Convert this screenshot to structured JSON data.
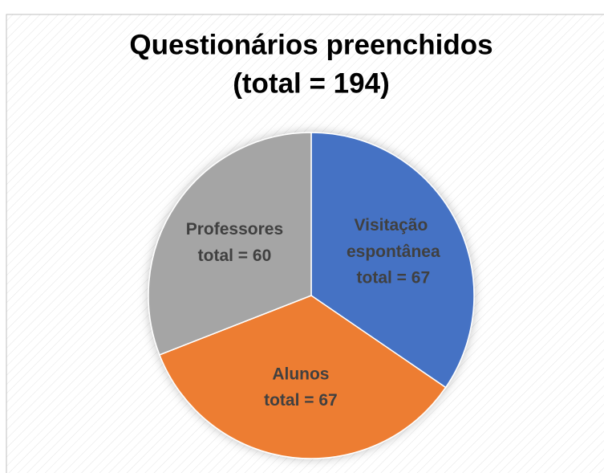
{
  "chart_data": {
    "type": "pie",
    "title": "Questionários preenchidos",
    "subtitle": "(total = 194)",
    "categories": [
      "Visitação espontânea",
      "Alunos",
      "Professores"
    ],
    "values": [
      67,
      67,
      60
    ],
    "value_labels": [
      "total = 67",
      "total = 67",
      "total = 60"
    ],
    "colors": [
      "#4472c4",
      "#ed7d31",
      "#a5a5a5"
    ]
  }
}
